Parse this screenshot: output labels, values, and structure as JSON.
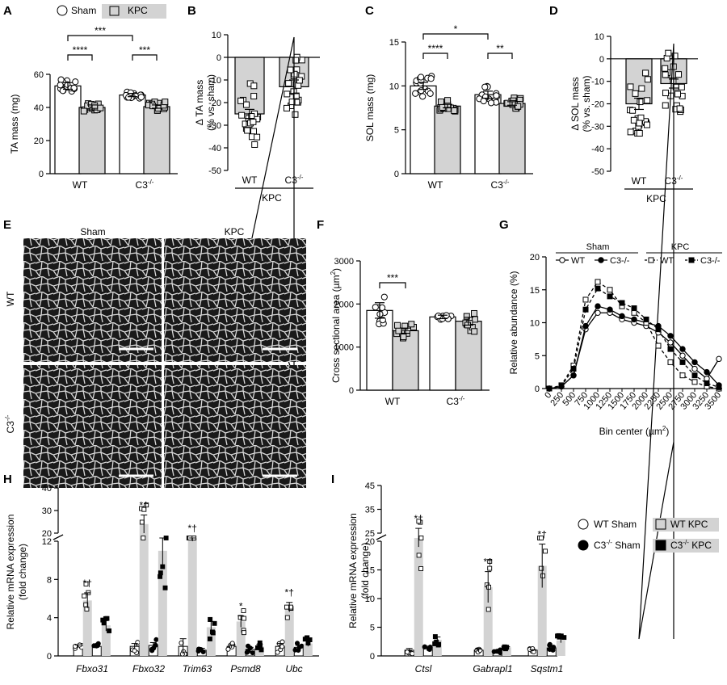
{
  "colors": {
    "sham": "#ffffff",
    "kpc": "#d3d3d3",
    "c3kpc": "#000000",
    "stroke": "#000000"
  },
  "legend_top": {
    "sham": "Sham",
    "kpc": "KPC"
  },
  "legend_hi": {
    "wt_sham": "WT Sham",
    "wt_kpc": "WT KPC",
    "c3_sham_pre": "C3",
    "c3_sham_sup": "-/-",
    "c3_sham_post": " Sham",
    "c3_kpc_pre": "C3",
    "c3_kpc_sup": "-/-",
    "c3_kpc_post": " KPC"
  },
  "micrograph": {
    "col_sham": "Sham",
    "col_kpc": "KPC",
    "row_wt": "WT",
    "row_c3": "C3",
    "row_c3_sup": "-/-"
  },
  "chart_data": [
    {
      "panel": "A",
      "type": "bar",
      "ylabel": "TA mass (mg)",
      "ylim": [
        0,
        60
      ],
      "yticks": [
        0,
        20,
        40,
        60
      ],
      "groups": [
        "WT",
        "C3"
      ],
      "group_sup": [
        "",
        "-/-"
      ],
      "series": [
        {
          "name": "Sham",
          "values": [
            53,
            47.5
          ],
          "err": [
            2,
            1
          ]
        },
        {
          "name": "KPC",
          "values": [
            40,
            40.5
          ],
          "err": [
            1.5,
            1
          ]
        }
      ],
      "sig": [
        {
          "label": "****"
        },
        {
          "label": "***"
        },
        {
          "label": "***"
        }
      ]
    },
    {
      "panel": "B",
      "type": "bar",
      "ylabel": "Δ TA mass",
      "ylabel2": "(% vs. sham)",
      "ylim": [
        -50,
        10
      ],
      "yticks": [
        -50,
        -40,
        -30,
        -20,
        -10,
        0,
        10
      ],
      "groups": [
        "WT",
        "C3"
      ],
      "group_sup": [
        "",
        "-/-"
      ],
      "values": [
        -25,
        -13
      ],
      "err": [
        2,
        3
      ],
      "under_label": "KPC",
      "sig": [
        {
          "label": "****"
        }
      ]
    },
    {
      "panel": "C",
      "type": "bar",
      "ylabel": "SOL mass (mg)",
      "ylim": [
        0,
        15
      ],
      "yticks": [
        0,
        5,
        10,
        15
      ],
      "groups": [
        "WT",
        "C3"
      ],
      "group_sup": [
        "",
        "-/-"
      ],
      "series": [
        {
          "name": "Sham",
          "values": [
            10,
            9
          ],
          "err": [
            0.4,
            0.4
          ]
        },
        {
          "name": "KPC",
          "values": [
            7.7,
            8
          ],
          "err": [
            0.2,
            0.2
          ]
        }
      ],
      "sig": [
        {
          "label": "****"
        },
        {
          "label": "**"
        },
        {
          "label": "*"
        }
      ]
    },
    {
      "panel": "D",
      "type": "bar",
      "ylabel": "Δ SOL mass",
      "ylabel2": "(% vs. sham)",
      "ylim": [
        -50,
        10
      ],
      "yticks": [
        -50,
        -40,
        -30,
        -20,
        -10,
        0,
        10
      ],
      "groups": [
        "WT",
        "C3"
      ],
      "group_sup": [
        "",
        "-/-"
      ],
      "values": [
        -20,
        -11
      ],
      "err": [
        2.5,
        2
      ],
      "under_label": "KPC",
      "sig": [
        {
          "label": "***"
        }
      ]
    },
    {
      "panel": "F",
      "type": "bar",
      "ylabel": "Cross sectional area (µm",
      "ylabel_sup": "2",
      "ylabel_post": ")",
      "ylim": [
        0,
        3000
      ],
      "yticks": [
        0,
        1000,
        2000,
        3000
      ],
      "groups": [
        "WT",
        "C3"
      ],
      "group_sup": [
        "",
        "-/-"
      ],
      "series": [
        {
          "name": "Sham",
          "values": [
            1850,
            1700
          ],
          "err": [
            180,
            40
          ]
        },
        {
          "name": "KPC",
          "values": [
            1380,
            1600
          ],
          "err": [
            60,
            90
          ]
        }
      ],
      "sig": [
        {
          "label": "***"
        }
      ]
    },
    {
      "panel": "G",
      "type": "line",
      "ylabel": "Relative abundance (%)",
      "xlabel": "Bin center (µm",
      "xlabel_sup": "2",
      "xlabel_post": ")",
      "ylim": [
        0,
        20
      ],
      "yticks": [
        0,
        5,
        10,
        15,
        20
      ],
      "x": [
        0,
        250,
        500,
        750,
        1000,
        1250,
        1500,
        1750,
        2000,
        2250,
        2500,
        2750,
        3000,
        3250,
        3500
      ],
      "legend_groups": [
        "Sham",
        "KPC"
      ],
      "series": [
        {
          "name": "WT",
          "group": "Sham",
          "dash": false,
          "fill": "#ffffff",
          "marker": "circle",
          "values": [
            0,
            0.3,
            2,
            9,
            11.5,
            11.5,
            10.5,
            10,
            9.5,
            8.5,
            7,
            5,
            3,
            1.5,
            4.5
          ]
        },
        {
          "name": "C3-/-",
          "group": "Sham",
          "dash": false,
          "fill": "#000000",
          "marker": "circle",
          "values": [
            0,
            0.3,
            2,
            9.5,
            12.5,
            12,
            11,
            10.5,
            10,
            9.5,
            8,
            6,
            4,
            2.5,
            0.5
          ]
        },
        {
          "name": "WT",
          "group": "KPC",
          "dash": true,
          "fill": "#ffffff",
          "marker": "square",
          "values": [
            0,
            0.5,
            3.5,
            13.5,
            16.2,
            15,
            12.5,
            11.5,
            10,
            6.5,
            4,
            2,
            1,
            0.3,
            0
          ]
        },
        {
          "name": "C3-/-",
          "group": "KPC",
          "dash": true,
          "fill": "#000000",
          "marker": "square",
          "values": [
            0,
            0.4,
            3,
            12,
            15.2,
            14,
            13,
            12.2,
            10.5,
            9,
            6,
            4,
            2,
            0.8,
            0.2
          ]
        }
      ]
    },
    {
      "panel": "H",
      "type": "bar",
      "ylabel": "Relative mRNA expression",
      "ylabel2": "(fold change)",
      "yticks_low": [
        0,
        4,
        8,
        12
      ],
      "yticks_high": [
        20,
        30,
        40
      ],
      "categories": [
        "Fbxo31",
        "Fbxo32",
        "Trim63",
        "Psmd8",
        "Ubc"
      ],
      "series": [
        {
          "name": "WT Sham",
          "values": [
            1,
            1,
            1,
            1,
            1
          ],
          "err": [
            0.15,
            0.3,
            0.8,
            0.15,
            0.3
          ]
        },
        {
          "name": "WT KPC",
          "values": [
            5.8,
            24,
            15,
            3.6,
            5.1
          ],
          "err": [
            0.8,
            4,
            3,
            0.6,
            0.5
          ]
        },
        {
          "name": "C3-/- Sham",
          "values": [
            1,
            1.1,
            0.6,
            0.7,
            0.9
          ],
          "err": [
            0.05,
            0.3,
            0.2,
            0.2,
            0.2
          ]
        },
        {
          "name": "C3-/- KPC",
          "values": [
            3.2,
            11,
            3,
            1,
            1.3
          ],
          "err": [
            0.6,
            1.8,
            0.6,
            0.2,
            0.3
          ]
        }
      ],
      "marks": [
        "*†",
        "*†",
        "*†",
        "*",
        "*†"
      ]
    },
    {
      "panel": "I",
      "type": "bar",
      "ylabel": "Relative mRNA expression",
      "ylabel2": "(fold change)",
      "yticks_low": [
        0,
        5,
        10,
        15,
        20
      ],
      "yticks_high": [
        25,
        35,
        45
      ],
      "categories": [
        "Ctsl",
        "Gabrapl1",
        "Sqstm1"
      ],
      "series": [
        {
          "name": "WT Sham",
          "values": [
            1,
            1,
            1
          ],
          "err": [
            0.3,
            0.2,
            0.1
          ]
        },
        {
          "name": "WT KPC",
          "values": [
            23,
            12,
            15.7
          ],
          "err": [
            4,
            2.7,
            3.8
          ]
        },
        {
          "name": "C3-/- Sham",
          "values": [
            1.5,
            0.8,
            1.4
          ],
          "err": [
            0.2,
            0.1,
            0.3
          ]
        },
        {
          "name": "C3-/- KPC",
          "values": [
            2.8,
            1.5,
            2.7
          ],
          "err": [
            0.5,
            0.1,
            0.4
          ]
        }
      ],
      "marks": [
        "*†",
        "*†",
        "*†"
      ]
    }
  ]
}
